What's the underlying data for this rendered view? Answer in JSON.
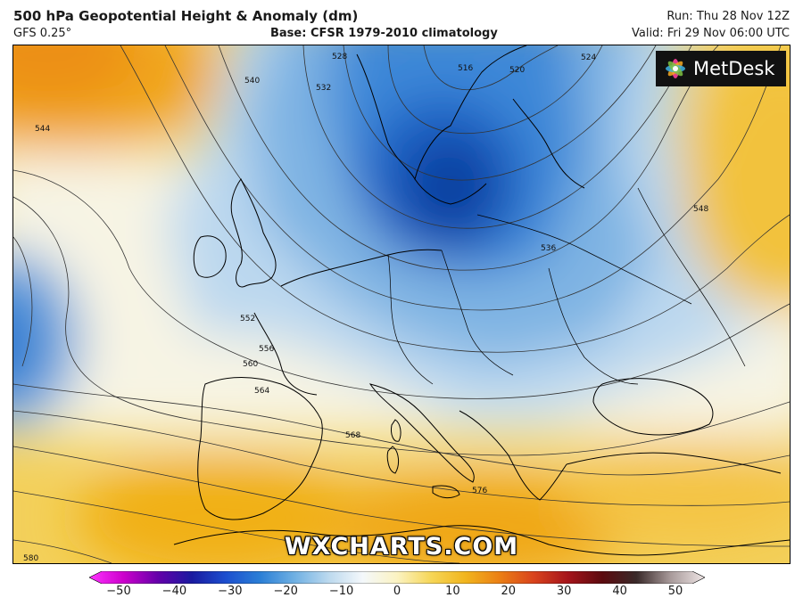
{
  "header": {
    "title": "500 hPa Geopotential Height & Anomaly (dm)",
    "model": "GFS 0.25°",
    "base": "Base: CFSR 1979-2010 climatology",
    "run": "Run: Thu 28 Nov 12Z",
    "valid": "Valid: Fri 29 Nov 06:00 UTC"
  },
  "logo": {
    "text": "MetDesk",
    "icon": "metdesk-flower-icon"
  },
  "watermark": "WXCHARTS.COM",
  "contour_labels": [
    "516",
    "520",
    "524",
    "528",
    "532",
    "536",
    "540",
    "544",
    "548",
    "552",
    "556",
    "560",
    "564",
    "568",
    "576",
    "580"
  ],
  "colorbar": {
    "ticks": [
      "−50",
      "−40",
      "−30",
      "−20",
      "−10",
      "0",
      "10",
      "20",
      "30",
      "40",
      "50"
    ],
    "colors": [
      "#ff33ff",
      "#cc00cc",
      "#6600aa",
      "#1a1aa0",
      "#1c4fcf",
      "#2b7fd6",
      "#6fb0e3",
      "#bcd9ee",
      "#f4f8fb",
      "#fbf3c2",
      "#f6d657",
      "#f1b51e",
      "#eb7f14",
      "#d9431d",
      "#a5141b",
      "#5c0b0f",
      "#3a2a2a",
      "#a89a9a",
      "#efe6e6"
    ]
  },
  "colors": {
    "sea_blue": "#3b86d8",
    "deep_blue": "#0f3e9e",
    "warm": "#f2b323",
    "neutral": "#f6f2dc"
  }
}
